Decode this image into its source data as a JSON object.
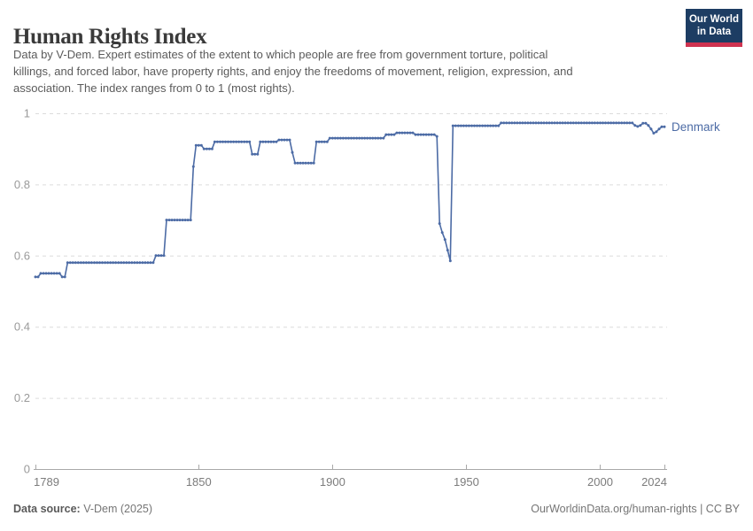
{
  "header": {
    "title": "Human Rights Index",
    "subtitle_lines": [
      "Data by V-Dem. Expert estimates of the extent to which people are free from government torture, political",
      "killings, and forced labor, have property rights, and enjoy the freedoms of movement, religion, expression, and",
      "association. The index ranges from 0 to 1 (most rights)."
    ],
    "logo": {
      "line1": "Our World",
      "line2": "in Data"
    }
  },
  "chart_data": {
    "type": "line",
    "title": "Human Rights Index",
    "xlabel": "",
    "ylabel": "",
    "x_range": [
      1789,
      2024
    ],
    "x_ticks": [
      1789,
      1850,
      1900,
      1950,
      2000,
      2024
    ],
    "y_range": [
      0,
      1
    ],
    "y_ticks": [
      0,
      0.2,
      0.4,
      0.6,
      0.8,
      1
    ],
    "grid": "dashed-horizontal",
    "legend_position": "end-of-line",
    "series": [
      {
        "name": "Denmark",
        "color": "#4C6BA5",
        "segments": [
          [
            1789,
            1790,
            0.54
          ],
          [
            1791,
            1798,
            0.55
          ],
          [
            1799,
            1800,
            0.54
          ],
          [
            1801,
            1833,
            0.58
          ],
          [
            1834,
            1837,
            0.6
          ],
          [
            1838,
            1847,
            0.7
          ],
          [
            1848,
            1848,
            0.85
          ],
          [
            1849,
            1851,
            0.91
          ],
          [
            1852,
            1855,
            0.9
          ],
          [
            1856,
            1869,
            0.92
          ],
          [
            1870,
            1872,
            0.885
          ],
          [
            1873,
            1879,
            0.92
          ],
          [
            1880,
            1884,
            0.925
          ],
          [
            1885,
            1885,
            0.89
          ],
          [
            1886,
            1893,
            0.86
          ],
          [
            1894,
            1898,
            0.92
          ],
          [
            1899,
            1919,
            0.93
          ],
          [
            1920,
            1923,
            0.94
          ],
          [
            1924,
            1930,
            0.945
          ],
          [
            1931,
            1938,
            0.94
          ],
          [
            1939,
            1939,
            0.935
          ],
          [
            1940,
            1940,
            0.69
          ],
          [
            1941,
            1941,
            0.665
          ],
          [
            1942,
            1942,
            0.645
          ],
          [
            1943,
            1943,
            0.615
          ],
          [
            1944,
            1944,
            0.585
          ],
          [
            1945,
            1962,
            0.965
          ],
          [
            1963,
            2012,
            0.973
          ],
          [
            2013,
            2013,
            0.966
          ],
          [
            2014,
            2014,
            0.963
          ],
          [
            2015,
            2015,
            0.966
          ],
          [
            2016,
            2017,
            0.972
          ],
          [
            2018,
            2018,
            0.966
          ],
          [
            2019,
            2019,
            0.956
          ],
          [
            2020,
            2020,
            0.944
          ],
          [
            2021,
            2021,
            0.948
          ],
          [
            2022,
            2022,
            0.956
          ],
          [
            2023,
            2024,
            0.962
          ]
        ]
      }
    ]
  },
  "footer": {
    "source_label": "Data source:",
    "source_value": " V-Dem (2025)",
    "credit": "OurWorldinData.org/human-rights | CC BY"
  },
  "colors": {
    "accent_line": "#4C6BA5",
    "logo_navy": "#1d3d63",
    "logo_red": "#cf3350",
    "gridline": "#dcdcdc",
    "axis": "#a8a8a8"
  }
}
